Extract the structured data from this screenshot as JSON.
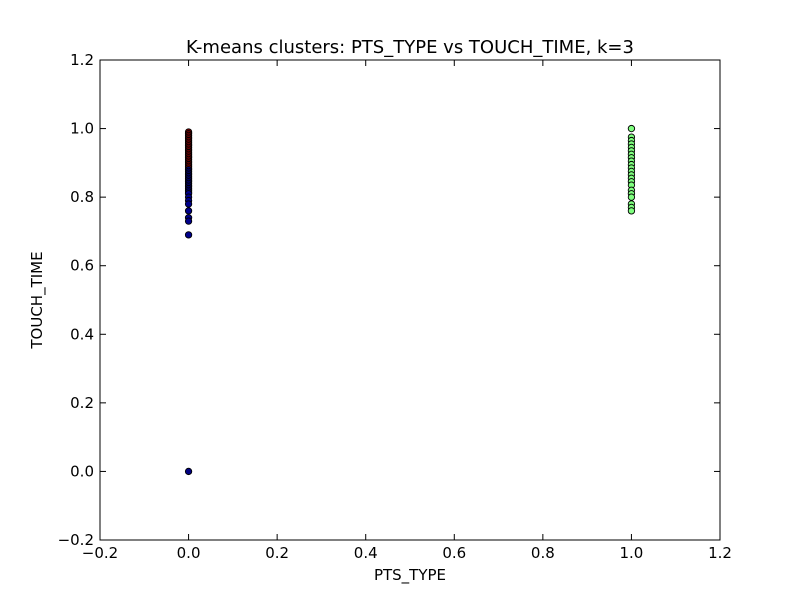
{
  "chart_data": {
    "type": "scatter",
    "title": "K-means clusters: PTS_TYPE vs TOUCH_TIME, k=3",
    "xlabel": "PTS_TYPE",
    "ylabel": "TOUCH_TIME",
    "xlim": [
      -0.2,
      1.2
    ],
    "ylim": [
      -0.2,
      1.2
    ],
    "xticks": [
      "−0.2",
      "0.0",
      "0.2",
      "0.4",
      "0.6",
      "0.8",
      "1.0",
      "1.2"
    ],
    "yticks": [
      "−0.2",
      "0.0",
      "0.2",
      "0.4",
      "0.6",
      "0.8",
      "1.0",
      "1.2"
    ],
    "grid": false,
    "series": [
      {
        "color": "#8b0000",
        "x": [
          0,
          0,
          0,
          0,
          0,
          0,
          0,
          0,
          0,
          0,
          0,
          0,
          0,
          0,
          0,
          0,
          0,
          0,
          0,
          0,
          0,
          0
        ],
        "y": [
          0.99,
          0.985,
          0.98,
          0.975,
          0.97,
          0.965,
          0.96,
          0.955,
          0.95,
          0.945,
          0.94,
          0.935,
          0.93,
          0.925,
          0.92,
          0.915,
          0.91,
          0.905,
          0.9,
          0.895,
          0.89,
          0.885
        ]
      },
      {
        "color": "#00008b",
        "x": [
          0,
          0,
          0,
          0,
          0,
          0,
          0,
          0,
          0,
          0,
          0,
          0,
          0,
          0,
          0,
          0,
          0,
          0,
          0,
          0,
          0,
          0
        ],
        "y": [
          0.88,
          0.875,
          0.87,
          0.865,
          0.86,
          0.855,
          0.85,
          0.845,
          0.84,
          0.835,
          0.83,
          0.825,
          0.82,
          0.815,
          0.81,
          0.8,
          0.79,
          0.78,
          0.76,
          0.74,
          0.73,
          0.69
        ]
      },
      {
        "color": "#000080",
        "x": [
          0
        ],
        "y": [
          0.0
        ]
      },
      {
        "color": "#7fff7f",
        "x": [
          1,
          1,
          1,
          1,
          1,
          1,
          1,
          1,
          1,
          1,
          1,
          1,
          1,
          1,
          1,
          1,
          1,
          1,
          1,
          1,
          1,
          1
        ],
        "y": [
          1.0,
          0.975,
          0.965,
          0.955,
          0.945,
          0.935,
          0.925,
          0.915,
          0.905,
          0.895,
          0.885,
          0.875,
          0.865,
          0.855,
          0.845,
          0.835,
          0.82,
          0.81,
          0.8,
          0.78,
          0.77,
          0.76
        ]
      }
    ]
  }
}
